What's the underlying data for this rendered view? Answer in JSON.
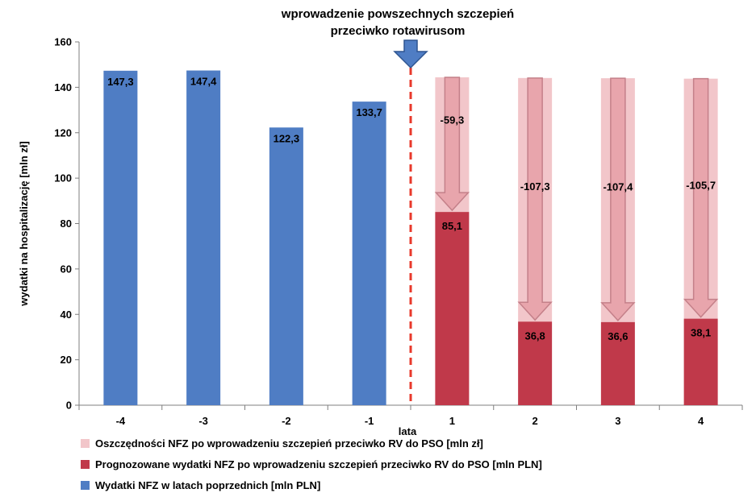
{
  "chart_data": {
    "type": "bar",
    "categories": [
      "-4",
      "-3",
      "-2",
      "-1",
      "1",
      "2",
      "3",
      "4"
    ],
    "series": [
      {
        "name": "Wydatki NFZ w latach poprzednich [mln PLN]",
        "color": "#4F7DC4",
        "values": [
          147.3,
          147.4,
          122.3,
          133.7,
          null,
          null,
          null,
          null
        ],
        "labels": [
          "147,3",
          "147,4",
          "122,3",
          "133,7",
          "",
          "",
          "",
          ""
        ]
      },
      {
        "name": "Prognozowane wydatki NFZ po wprowadzeniu szczepień przeciwko RV do PSO [mln PLN]",
        "color": "#C0394A",
        "values": [
          null,
          null,
          null,
          null,
          85.1,
          36.8,
          36.6,
          38.1
        ],
        "labels": [
          "",
          "",
          "",
          "",
          "85,1",
          "36,8",
          "36,6",
          "38,1"
        ]
      },
      {
        "name": "Oszczędności NFZ po wprowadzeniu szczepień przeciwko RV do PSO [mln zł]",
        "color": "#F2C6CA",
        "values": [
          null,
          null,
          null,
          null,
          59.3,
          107.3,
          107.4,
          105.7
        ],
        "labels": [
          "",
          "",
          "",
          "",
          "-59,3",
          "-107,3",
          "-107,4",
          "-105,7"
        ]
      }
    ],
    "title": "wprowadzenie powszechnych szczepień\nprzeciwko rotawirusom",
    "xlabel": "lata",
    "ylabel": "wydatki na hospitalizację [mln zł]",
    "ylim": [
      0,
      160
    ],
    "yticks": [
      "0",
      "20",
      "40",
      "60",
      "80",
      "100",
      "120",
      "140",
      "160"
    ],
    "legend_position": "bottom",
    "legend_order": [
      2,
      1,
      0
    ],
    "grid": false,
    "annotation": {
      "type": "dashed-vertical-line",
      "between": [
        "-1",
        "1"
      ],
      "color": "#E8392B"
    },
    "savings_arrow_color": "#E8A5AC"
  }
}
